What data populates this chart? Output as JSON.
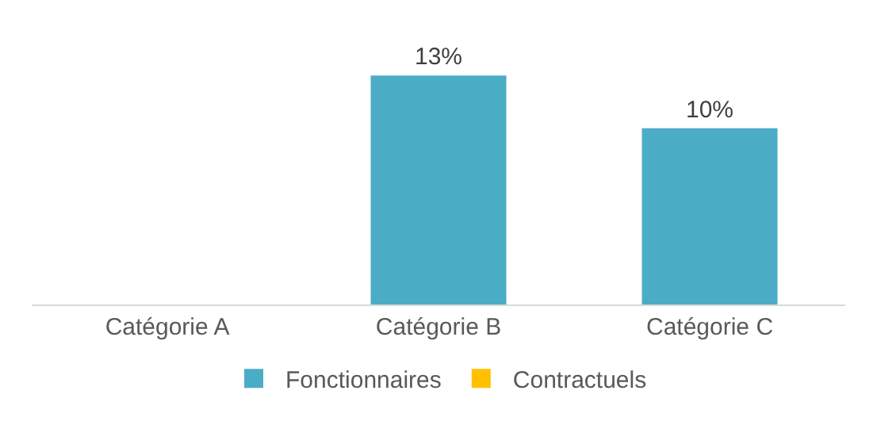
{
  "chart_data": {
    "type": "bar",
    "categories": [
      "Catégorie A",
      "Catégorie B",
      "Catégorie C"
    ],
    "series": [
      {
        "name": "Fonctionnaires",
        "color": "#4bacc6",
        "values": [
          null,
          13,
          10
        ],
        "value_labels": [
          null,
          "13%",
          "10%"
        ]
      },
      {
        "name": "Contractuels",
        "color": "#ffc000",
        "values": [
          null,
          null,
          null
        ]
      }
    ],
    "legend": "bottom",
    "grid": false
  }
}
